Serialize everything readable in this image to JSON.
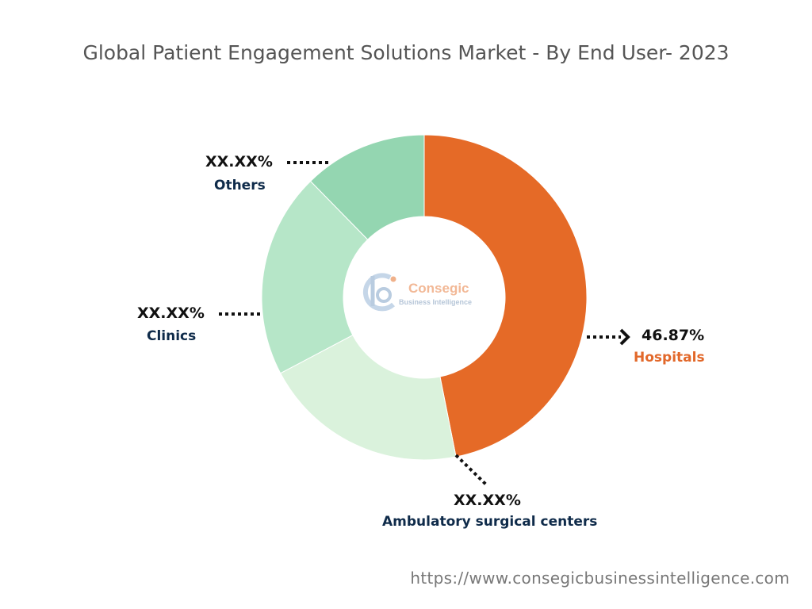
{
  "chart_data": {
    "type": "pie",
    "title": "Global Patient Engagement Solutions Market - By End User- 2023",
    "donut": true,
    "slices": [
      {
        "name": "Hospitals",
        "value": 46.87,
        "label": "46.87%",
        "color": "#e56a27"
      },
      {
        "name": "Ambulatory surgical centers",
        "value": 20.4,
        "label": "XX.XX%",
        "color": "#daf2dc"
      },
      {
        "name": "Clinics",
        "value": 20.4,
        "label": "XX.XX%",
        "color": "#b6e6c8"
      },
      {
        "name": "Others",
        "value": 12.33,
        "label": "XX.XX%",
        "color": "#94d6b1"
      }
    ]
  },
  "center_logo": {
    "name": "Consegic",
    "tagline": "Business Intelligence"
  },
  "source_url": "https://www.consegicbusinessintelligence.com"
}
